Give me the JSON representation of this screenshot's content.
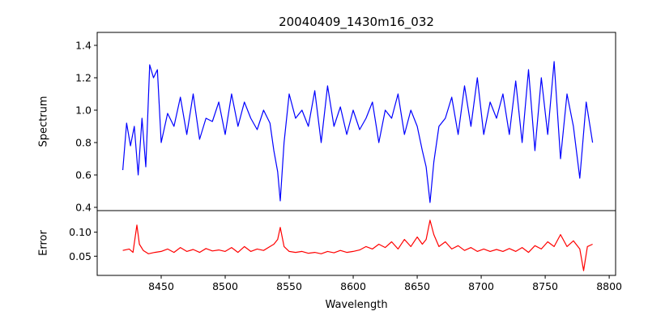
{
  "chart_data": [
    {
      "type": "line",
      "title": "20040409_1430m16_032",
      "xlabel": "",
      "ylabel": "Spectrum",
      "xlim": [
        8400,
        8805
      ],
      "ylim": [
        0.38,
        1.48
      ],
      "yticks": [
        0.4,
        0.6,
        0.8,
        1.0,
        1.2,
        1.4
      ],
      "ytick_labels": [
        "0.4",
        "0.6",
        "0.8",
        "1.0",
        "1.2",
        "1.4"
      ],
      "color": "#0000ff",
      "x": [
        8420,
        8423,
        8426,
        8429,
        8432,
        8435,
        8438,
        8441,
        8444,
        8447,
        8450,
        8455,
        8460,
        8465,
        8470,
        8475,
        8480,
        8485,
        8490,
        8495,
        8500,
        8505,
        8510,
        8515,
        8520,
        8525,
        8530,
        8535,
        8538,
        8541,
        8543,
        8546,
        8550,
        8555,
        8560,
        8565,
        8570,
        8575,
        8580,
        8585,
        8590,
        8595,
        8600,
        8605,
        8610,
        8615,
        8620,
        8625,
        8630,
        8635,
        8640,
        8645,
        8650,
        8654,
        8657,
        8660,
        8663,
        8667,
        8672,
        8677,
        8682,
        8687,
        8692,
        8697,
        8702,
        8707,
        8712,
        8717,
        8722,
        8727,
        8732,
        8737,
        8742,
        8747,
        8752,
        8757,
        8762,
        8767,
        8772,
        8777,
        8782,
        8787
      ],
      "y": [
        0.63,
        0.92,
        0.78,
        0.9,
        0.6,
        0.95,
        0.65,
        1.28,
        1.2,
        1.25,
        0.8,
        0.98,
        0.9,
        1.08,
        0.85,
        1.1,
        0.82,
        0.95,
        0.93,
        1.05,
        0.85,
        1.1,
        0.9,
        1.05,
        0.95,
        0.88,
        1.0,
        0.92,
        0.75,
        0.62,
        0.44,
        0.8,
        1.1,
        0.95,
        1.0,
        0.9,
        1.12,
        0.8,
        1.15,
        0.9,
        1.02,
        0.85,
        1.0,
        0.88,
        0.95,
        1.05,
        0.8,
        1.0,
        0.95,
        1.1,
        0.85,
        1.0,
        0.9,
        0.75,
        0.65,
        0.43,
        0.68,
        0.9,
        0.95,
        1.08,
        0.85,
        1.15,
        0.9,
        1.2,
        0.85,
        1.05,
        0.95,
        1.1,
        0.85,
        1.18,
        0.8,
        1.25,
        0.75,
        1.2,
        0.85,
        1.3,
        0.7,
        1.1,
        0.9,
        0.58,
        1.05,
        0.8
      ],
      "series": [
        {
          "name": ""
        }
      ]
    },
    {
      "type": "line",
      "title": "",
      "xlabel": "Wavelength",
      "ylabel": "Error",
      "xlim": [
        8400,
        8805
      ],
      "ylim": [
        0.01,
        0.145
      ],
      "yticks": [
        0.05,
        0.1
      ],
      "ytick_labels": [
        "0.05",
        "0.10"
      ],
      "xticks": [
        8450,
        8500,
        8550,
        8600,
        8650,
        8700,
        8750,
        8800
      ],
      "xtick_labels": [
        "8450",
        "8500",
        "8550",
        "8600",
        "8650",
        "8700",
        "8750",
        "8800"
      ],
      "color": "#ff0000",
      "x": [
        8420,
        8425,
        8428,
        8431,
        8433,
        8436,
        8440,
        8445,
        8450,
        8455,
        8460,
        8465,
        8470,
        8475,
        8480,
        8485,
        8490,
        8495,
        8500,
        8505,
        8510,
        8515,
        8520,
        8525,
        8530,
        8535,
        8538,
        8541,
        8543,
        8546,
        8550,
        8555,
        8560,
        8565,
        8570,
        8575,
        8580,
        8585,
        8590,
        8595,
        8600,
        8605,
        8610,
        8615,
        8620,
        8625,
        8630,
        8635,
        8640,
        8645,
        8650,
        8654,
        8657,
        8660,
        8663,
        8667,
        8672,
        8677,
        8682,
        8687,
        8692,
        8697,
        8702,
        8707,
        8712,
        8717,
        8722,
        8727,
        8732,
        8737,
        8742,
        8747,
        8752,
        8757,
        8762,
        8767,
        8772,
        8777,
        8780,
        8783,
        8787
      ],
      "y": [
        0.062,
        0.065,
        0.058,
        0.115,
        0.075,
        0.062,
        0.055,
        0.058,
        0.06,
        0.065,
        0.058,
        0.068,
        0.06,
        0.064,
        0.058,
        0.066,
        0.061,
        0.063,
        0.06,
        0.068,
        0.058,
        0.07,
        0.06,
        0.065,
        0.062,
        0.07,
        0.075,
        0.085,
        0.11,
        0.07,
        0.06,
        0.058,
        0.06,
        0.056,
        0.058,
        0.055,
        0.06,
        0.057,
        0.062,
        0.058,
        0.06,
        0.063,
        0.07,
        0.065,
        0.075,
        0.068,
        0.08,
        0.065,
        0.085,
        0.07,
        0.09,
        0.075,
        0.085,
        0.125,
        0.095,
        0.07,
        0.08,
        0.065,
        0.072,
        0.062,
        0.068,
        0.06,
        0.065,
        0.06,
        0.064,
        0.06,
        0.066,
        0.06,
        0.068,
        0.058,
        0.072,
        0.065,
        0.08,
        0.07,
        0.095,
        0.07,
        0.082,
        0.065,
        0.02,
        0.07,
        0.075
      ],
      "series": [
        {
          "name": ""
        }
      ]
    }
  ]
}
